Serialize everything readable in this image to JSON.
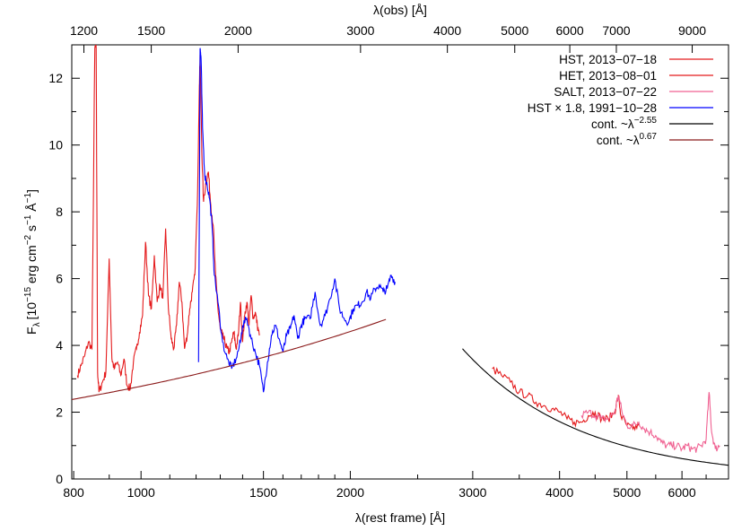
{
  "chart_data": {
    "type": "line",
    "xlabel_bottom": "λ(rest frame) [Å]",
    "xlabel_top": "λ(obs) [Å]",
    "ylabel": "F",
    "ylabel_sub": "λ",
    "ylabel_units": "[10",
    "ylabel_exp1": "−15",
    "ylabel_mid1": " erg cm",
    "ylabel_exp2": "−2",
    "ylabel_mid2": " s",
    "ylabel_exp3": "−1",
    "ylabel_mid3": " Å",
    "ylabel_exp4": "−1",
    "ylabel_end": "]",
    "x_scale": "log",
    "xlim": [
      795,
      7000
    ],
    "ylim": [
      0,
      13
    ],
    "x_ticks": [
      800,
      1000,
      1500,
      2000,
      3000,
      4000,
      5000,
      6000
    ],
    "y_ticks": [
      0,
      2,
      4,
      6,
      8,
      10,
      12
    ],
    "x_top_ticks": [
      1200,
      1500,
      2000,
      3000,
      4000,
      5000,
      6000,
      7000,
      9000
    ],
    "redshift": 0.45,
    "legend_position": "top-right",
    "series": [
      {
        "name": "HST, 2013−07−18",
        "color": "#e41a1c",
        "x": [
          810,
          820,
          830,
          840,
          850,
          858,
          862,
          866,
          870,
          880,
          890,
          900,
          908,
          915,
          925,
          935,
          945,
          955,
          965,
          975,
          985,
          995,
          1005,
          1015,
          1025,
          1035,
          1045,
          1055,
          1065,
          1075,
          1085,
          1095,
          1105,
          1115,
          1125,
          1135,
          1145,
          1155,
          1165,
          1175,
          1185,
          1195,
          1205,
          1213,
          1216,
          1219,
          1223,
          1230,
          1240,
          1250,
          1260,
          1270,
          1280,
          1290,
          1300,
          1310,
          1320,
          1330,
          1340,
          1350,
          1360,
          1370,
          1380,
          1390,
          1400,
          1410,
          1420,
          1430,
          1440,
          1450,
          1460,
          1470,
          1480
        ],
        "y": [
          3.1,
          3.4,
          3.7,
          4.1,
          3.9,
          12.9,
          12.9,
          3.2,
          2.6,
          2.9,
          3.2,
          6.6,
          3.6,
          3.3,
          3.5,
          3.1,
          3.6,
          2.8,
          2.7,
          3.5,
          3.9,
          4.4,
          4.9,
          7.1,
          5.5,
          5.1,
          6.7,
          5.3,
          5.8,
          5.4,
          7.5,
          5.1,
          4.2,
          3.9,
          4.6,
          5.9,
          5.3,
          3.9,
          4.3,
          5.1,
          5.6,
          6.1,
          8.2,
          11.8,
          12.7,
          11.5,
          9.8,
          8.3,
          8.9,
          9.2,
          8.2,
          7.6,
          6.1,
          5.1,
          4.5,
          4.3,
          4.1,
          3.9,
          3.8,
          4.1,
          4.4,
          3.9,
          4.3,
          5.3,
          4.1,
          4.9,
          5.3,
          4.6,
          5.5,
          4.8,
          5.0,
          4.6,
          4.3
        ]
      },
      {
        "name": "HET, 2013−08−01",
        "color": "#e41a1c",
        "x": [
          3200,
          3300,
          3400,
          3500,
          3600,
          3700,
          3800,
          3900,
          4000,
          4100,
          4200,
          4300,
          4400,
          4500,
          4600,
          4700,
          4800,
          4860,
          4900,
          5000,
          5100,
          5200
        ],
        "y": [
          3.3,
          3.1,
          2.9,
          2.6,
          2.5,
          2.3,
          2.2,
          2.1,
          2.0,
          1.8,
          1.7,
          1.7,
          1.9,
          2.0,
          1.8,
          1.8,
          2.0,
          2.5,
          1.9,
          1.6,
          1.5,
          1.6
        ]
      },
      {
        "name": "SALT, 2013−07−22",
        "color": "#f06292",
        "x": [
          4300,
          4400,
          4500,
          4600,
          4700,
          4800,
          4860,
          4920,
          5000,
          5100,
          5200,
          5300,
          5400,
          5500,
          5600,
          5700,
          5800,
          5900,
          6000,
          6100,
          6200,
          6300,
          6400,
          6500,
          6563,
          6620,
          6700,
          6800
        ],
        "y": [
          1.9,
          2.0,
          1.9,
          1.8,
          1.8,
          2.0,
          2.5,
          2.0,
          1.6,
          1.6,
          1.7,
          1.5,
          1.4,
          1.3,
          1.1,
          1.0,
          1.0,
          1.0,
          0.9,
          1.0,
          0.9,
          0.9,
          1.0,
          1.2,
          2.6,
          1.4,
          0.9,
          1.0
        ]
      },
      {
        "name": "HST × 1.8, 1991−10−28",
        "color": "#0000ff",
        "x": [
          1210,
          1216,
          1220,
          1226,
          1235,
          1245,
          1255,
          1265,
          1275,
          1290,
          1310,
          1330,
          1350,
          1370,
          1390,
          1400,
          1420,
          1440,
          1460,
          1480,
          1500,
          1520,
          1540,
          1560,
          1580,
          1600,
          1620,
          1640,
          1660,
          1680,
          1700,
          1720,
          1750,
          1780,
          1810,
          1840,
          1870,
          1900,
          1930,
          1960,
          1990,
          2020,
          2050,
          2080,
          2110,
          2140,
          2170,
          2200,
          2230,
          2260,
          2290,
          2320
        ],
        "y": [
          3.5,
          12.9,
          12.6,
          10.5,
          9.1,
          8.8,
          8.4,
          7.6,
          6.1,
          5.3,
          4.1,
          3.6,
          3.3,
          3.6,
          4.1,
          4.6,
          4.8,
          4.2,
          3.8,
          3.4,
          2.6,
          3.5,
          4.3,
          4.6,
          4.2,
          3.8,
          4.3,
          4.5,
          4.9,
          4.2,
          4.6,
          4.8,
          4.8,
          5.6,
          4.6,
          4.9,
          5.4,
          6.0,
          5.1,
          4.8,
          4.7,
          5.1,
          5.2,
          5.3,
          5.6,
          5.4,
          5.7,
          5.8,
          5.6,
          5.7,
          6.1,
          5.9
        ]
      },
      {
        "name": "cont. ~λ",
        "name_exp": "−2.55",
        "color": "#000000",
        "func": "power",
        "coef": 3.9,
        "x0": 2900,
        "exponent": -2.55,
        "xrange": [
          2900,
          7000
        ]
      },
      {
        "name": "cont. ~λ",
        "name_exp": "0.67",
        "color": "#8b1a1a",
        "func": "power",
        "coef": 2.38,
        "x0": 795,
        "exponent": 0.67,
        "xrange": [
          795,
          2250
        ]
      }
    ]
  }
}
